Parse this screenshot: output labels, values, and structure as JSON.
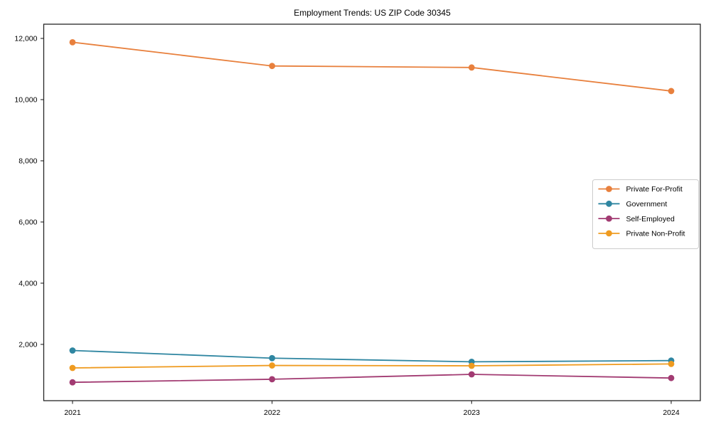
{
  "chart_data": {
    "type": "line",
    "title": "Employment Trends: US ZIP Code 30345",
    "xlabel": "",
    "ylabel": "",
    "x": [
      "2021",
      "2022",
      "2023",
      "2024"
    ],
    "series": [
      {
        "name": "Private For-Profit",
        "color": "#e8803d",
        "values": [
          11875,
          11100,
          11050,
          10280
        ]
      },
      {
        "name": "Government",
        "color": "#2f86a1",
        "values": [
          1800,
          1550,
          1430,
          1470
        ]
      },
      {
        "name": "Self-Employed",
        "color": "#a23b72",
        "values": [
          760,
          860,
          1020,
          900
        ]
      },
      {
        "name": "Private Non-Profit",
        "color": "#ef9b20",
        "values": [
          1230,
          1310,
          1300,
          1360
        ]
      }
    ],
    "ytick_values": [
      2000,
      4000,
      6000,
      8000,
      10000,
      12000
    ],
    "ytick_labels": [
      "2,000",
      "4,000",
      "6,000",
      "8,000",
      "10,000",
      "12,000"
    ],
    "ylim": [
      160,
      12465
    ],
    "grid": false,
    "legend_position": "center right",
    "marker": "circle",
    "line_style": "solid"
  },
  "style": {
    "background": "#ffffff",
    "text_color": "#000000",
    "spine_color": "#262626",
    "legend_border": "#cccccc",
    "legend_background": "#ffffff"
  }
}
